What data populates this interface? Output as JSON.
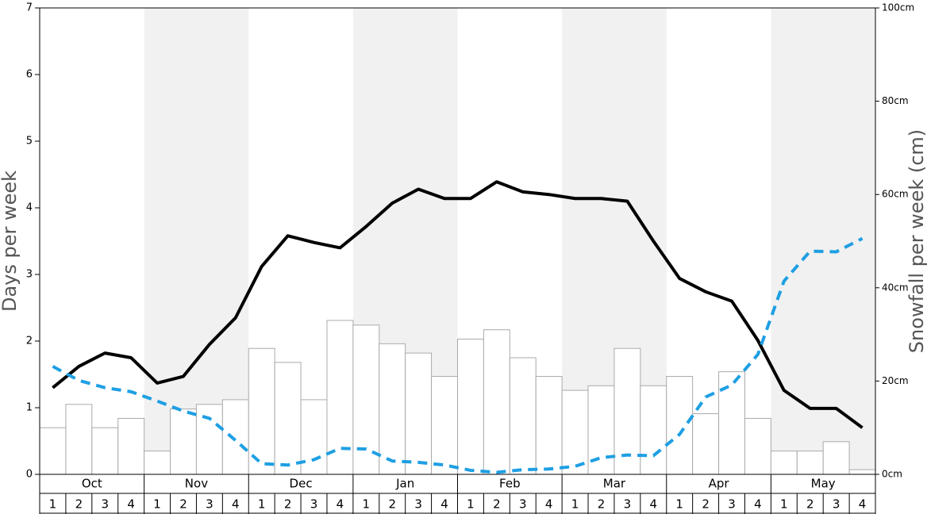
{
  "chart_data": {
    "type": "bar-line",
    "y_label": "Days per week",
    "y2_label": "Snowfall per week (cm)",
    "months": [
      "Oct",
      "Nov",
      "Dec",
      "Jan",
      "Feb",
      "Mar",
      "Apr",
      "May"
    ],
    "categories": [
      "1",
      "2",
      "3",
      "4",
      "1",
      "2",
      "3",
      "4",
      "1",
      "2",
      "3",
      "4",
      "1",
      "2",
      "3",
      "4",
      "1",
      "2",
      "3",
      "4",
      "1",
      "2",
      "3",
      "4",
      "1",
      "2",
      "3",
      "4",
      "1",
      "2",
      "3",
      "4"
    ],
    "series": [
      {
        "type": "bar",
        "axis": "y2",
        "color": "#ffffff",
        "values": [
          10,
          15,
          10,
          12,
          5,
          14,
          15,
          16,
          27,
          24,
          16,
          33,
          32,
          28,
          26,
          21,
          29,
          31,
          25,
          21,
          18,
          19,
          27,
          19,
          21,
          13,
          22,
          12,
          5,
          5,
          7,
          1
        ]
      },
      {
        "type": "line",
        "color": "#000000",
        "dashed": false,
        "values": [
          1.3,
          1.62,
          1.82,
          1.75,
          1.37,
          1.47,
          1.95,
          2.35,
          3.12,
          3.58,
          3.48,
          3.4,
          3.72,
          4.07,
          4.28,
          4.14,
          4.14,
          4.39,
          4.24,
          4.2,
          4.14,
          4.14,
          4.1,
          3.5,
          2.94,
          2.74,
          2.6,
          2.01,
          1.26,
          0.99,
          0.99,
          0.7
        ]
      },
      {
        "type": "line",
        "color": "#1e9fe3",
        "dashed": true,
        "values": [
          1.62,
          1.41,
          1.3,
          1.24,
          1.1,
          0.95,
          0.84,
          0.51,
          0.16,
          0.14,
          0.22,
          0.39,
          0.38,
          0.2,
          0.18,
          0.14,
          0.06,
          0.03,
          0.07,
          0.08,
          0.12,
          0.25,
          0.29,
          0.28,
          0.6,
          1.16,
          1.34,
          1.8,
          2.9,
          3.35,
          3.34,
          3.54
        ]
      }
    ],
    "ylim": [
      0,
      7
    ],
    "yticks": [
      0,
      1,
      2,
      3,
      4,
      5,
      6,
      7
    ],
    "y2lim": [
      0,
      100
    ],
    "y2ticks": [
      {
        "value": 0,
        "label": "0cm"
      },
      {
        "value": 20,
        "label": "20cm"
      },
      {
        "value": 40,
        "label": "40cm"
      },
      {
        "value": 60,
        "label": "60cm"
      },
      {
        "value": 80,
        "label": "80cm"
      },
      {
        "value": 100,
        "label": "100cm"
      }
    ]
  }
}
